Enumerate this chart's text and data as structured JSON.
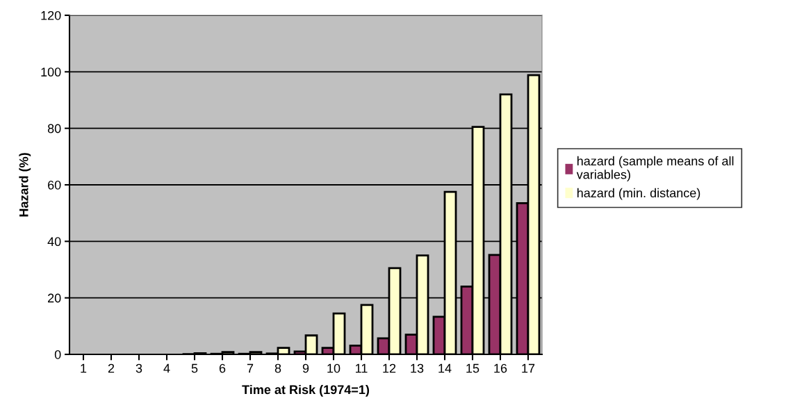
{
  "chart_data": {
    "type": "bar",
    "xlabel": "Time at Risk (1974=1)",
    "ylabel": "Hazard (%)",
    "categories": [
      "1",
      "2",
      "3",
      "4",
      "5",
      "6",
      "7",
      "8",
      "9",
      "10",
      "11",
      "12",
      "13",
      "14",
      "15",
      "16",
      "17"
    ],
    "series": [
      {
        "name": "hazard (sample means of all variables)",
        "color": "#993366",
        "values": [
          0,
          0,
          0,
          0,
          0.1,
          0.2,
          0.2,
          0.3,
          1.0,
          2.3,
          3.1,
          5.7,
          7.0,
          13.3,
          24,
          35.2,
          53.5
        ]
      },
      {
        "name": "hazard (min. distance)",
        "color": "#ffffcc",
        "values": [
          0,
          0,
          0,
          0,
          0.4,
          0.8,
          0.8,
          2.3,
          6.7,
          14.5,
          17.5,
          30.5,
          35,
          57.5,
          80.5,
          92,
          98.8
        ]
      }
    ],
    "ylim": [
      0,
      120
    ],
    "yticks": [
      0,
      20,
      40,
      60,
      80,
      100,
      120
    ],
    "grid": "y",
    "legend": "right"
  }
}
